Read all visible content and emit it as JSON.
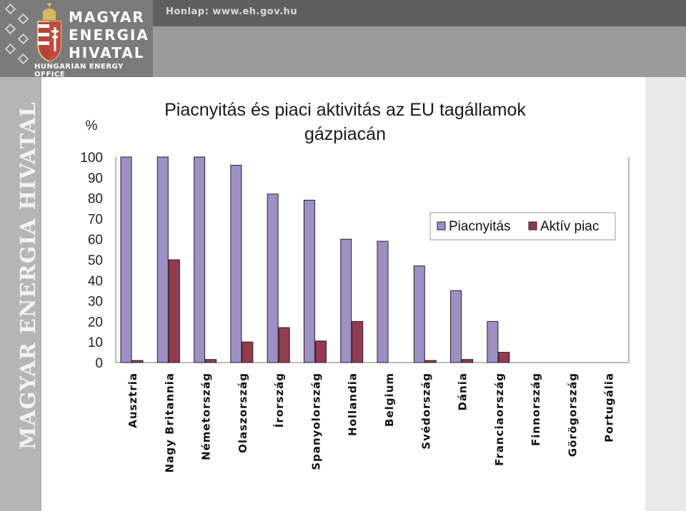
{
  "header": {
    "homepage": "Honlap: www.eh.gov.hu",
    "brand_lines": [
      "MAGYAR",
      "ENERGIA",
      "HIVATAL"
    ],
    "brand_sub": "HUNGARIAN ENERGY OFFICE",
    "side_text": "MAGYAR ENERGIA HIVATAL"
  },
  "chart_data": {
    "type": "bar",
    "title": "Piacnyitás és piaci aktivitás az EU tagállamok gázpiacán",
    "title_lines": [
      "Piacnyitás és piaci aktivitás az EU tagállamok",
      "gázpiacán"
    ],
    "ylabel": "%",
    "ylim": [
      0,
      100
    ],
    "yticks": [
      0,
      10,
      20,
      30,
      40,
      50,
      60,
      70,
      80,
      90,
      100
    ],
    "categories": [
      "Ausztria",
      "Nagy Britannia",
      "Németország",
      "Olaszország",
      "Írország",
      "Spanyolország",
      "Hollandia",
      "Belgium",
      "Svédország",
      "Dánia",
      "Franciaország",
      "Finnország",
      "Görögország",
      "Portugália"
    ],
    "series": [
      {
        "name": "Piacnyitás",
        "color": "#9e8fc4",
        "values": [
          100,
          100,
          100,
          96,
          82,
          79,
          60,
          59,
          47,
          35,
          20,
          0,
          0,
          0
        ]
      },
      {
        "name": "Aktív piac",
        "color": "#943b4e",
        "values": [
          1,
          50,
          1.5,
          10,
          17,
          10.5,
          20,
          0,
          1,
          1.5,
          5,
          0,
          0,
          0
        ]
      }
    ],
    "legend_position": "top-right",
    "grid": false
  }
}
